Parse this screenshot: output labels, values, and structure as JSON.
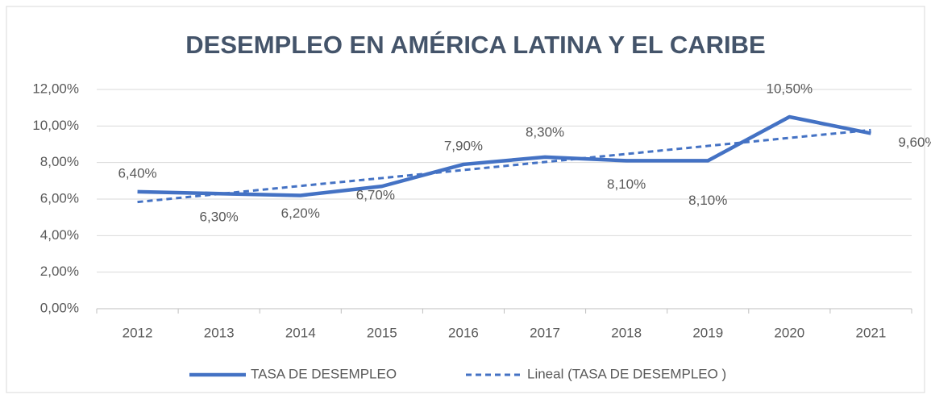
{
  "chart_data": {
    "type": "line",
    "title": "DESEMPLEO EN AMÉRICA LATINA Y EL CARIBE",
    "categories": [
      "2012",
      "2013",
      "2014",
      "2015",
      "2016",
      "2017",
      "2018",
      "2019",
      "2020",
      "2021"
    ],
    "series": [
      {
        "name": "TASA DE DESEMPLEO",
        "color": "#4472c4",
        "style": "solid",
        "values": [
          6.4,
          6.3,
          6.2,
          6.7,
          7.9,
          8.3,
          8.1,
          8.1,
          10.5,
          9.6
        ],
        "value_labels": [
          "6,40%",
          "6,30%",
          "6,20%",
          "6,70%",
          "7,90%",
          "8,30%",
          "8,10%",
          "8,10%",
          "10,50%",
          "9,60%"
        ]
      },
      {
        "name": "Lineal (TASA DE DESEMPLEO )",
        "color": "#4472c4",
        "style": "dashed",
        "values": [
          5.84,
          6.28,
          6.72,
          7.15,
          7.59,
          8.03,
          8.47,
          8.91,
          9.35,
          9.78
        ]
      }
    ],
    "ylim": [
      0,
      12
    ],
    "yticks": [
      {
        "value": 0,
        "label": "0,00%"
      },
      {
        "value": 2,
        "label": "2,00%"
      },
      {
        "value": 4,
        "label": "4,00%"
      },
      {
        "value": 6,
        "label": "6,00%"
      },
      {
        "value": 8,
        "label": "8,00%"
      },
      {
        "value": 10,
        "label": "10,00%"
      },
      {
        "value": 12,
        "label": "12,00%"
      }
    ],
    "grid": true,
    "legend": "bottom"
  }
}
